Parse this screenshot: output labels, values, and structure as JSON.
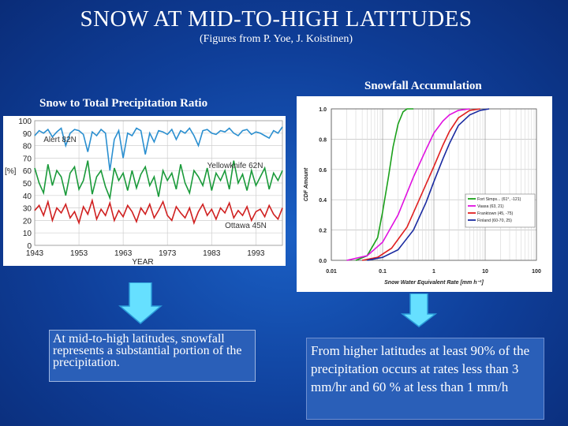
{
  "header": {
    "title": "SNOW AT MID-TO-HIGH LATITUDES",
    "subtitle": "(Figures from P. Yoe, J. Koistinen)"
  },
  "left_panel": {
    "caption": "Snow to Total Precipitation Ratio",
    "text": "At mid-to-high latitudes, snowfall represents a substantial portion of the precipitation."
  },
  "right_panel": {
    "caption": "Snowfall Accumulation",
    "text": "From higher latitudes at least 90% of the precipitation occurs at rates less than 3 mm/hr and 60 % at less than 1 mm/h"
  },
  "colors": {
    "background": "#0f3f9a",
    "arrow": "#66e0ff",
    "textbox": "#2a5fb8"
  },
  "chart_data": [
    {
      "type": "line",
      "title": "",
      "xlabel": "YEAR",
      "ylabel": "[%]",
      "xlim": [
        1943,
        1999
      ],
      "ylim": [
        0,
        100
      ],
      "xticks": [
        "1943",
        "1953",
        "1963",
        "1973",
        "1983",
        "1993"
      ],
      "yticks": [
        "0",
        "10",
        "20",
        "30",
        "40",
        "50",
        "60",
        "70",
        "80",
        "90",
        "100"
      ],
      "grid": true,
      "series": [
        {
          "name": "Alert 82N",
          "color": "#2a8fd0",
          "values": [
            88,
            92,
            90,
            93,
            87,
            91,
            94,
            80,
            90,
            93,
            92,
            89,
            75,
            91,
            88,
            93,
            90,
            60,
            85,
            92,
            70,
            90,
            88,
            94,
            92,
            73,
            90,
            83,
            92,
            91,
            89,
            93,
            85,
            92,
            90,
            94,
            88,
            80,
            92,
            93,
            90,
            89,
            92,
            91,
            94,
            90,
            88,
            92,
            93,
            89,
            91,
            90,
            88,
            86,
            92,
            90,
            95
          ]
        },
        {
          "name": "Yellowknife 62N",
          "color": "#1a9a3a",
          "values": [
            62,
            50,
            42,
            65,
            48,
            60,
            55,
            40,
            58,
            63,
            45,
            52,
            68,
            41,
            55,
            60,
            47,
            38,
            62,
            52,
            58,
            44,
            60,
            46,
            57,
            63,
            48,
            55,
            39,
            60,
            52,
            58,
            45,
            65,
            50,
            42,
            60,
            55,
            48,
            62,
            44,
            58,
            52,
            60,
            45,
            68,
            50,
            57,
            44,
            60,
            48,
            55,
            62,
            45,
            58,
            52,
            60
          ]
        },
        {
          "name": "Ottawa 45N",
          "color": "#d02020",
          "values": [
            28,
            32,
            24,
            35,
            20,
            30,
            26,
            33,
            22,
            27,
            18,
            31,
            25,
            36,
            21,
            29,
            24,
            34,
            20,
            28,
            23,
            32,
            27,
            19,
            30,
            25,
            33,
            22,
            28,
            35,
            24,
            20,
            31,
            26,
            22,
            30,
            18,
            27,
            33,
            24,
            29,
            21,
            30,
            26,
            34,
            22,
            28,
            24,
            31,
            20,
            27,
            29,
            23,
            32,
            25,
            21,
            30
          ]
        }
      ]
    },
    {
      "type": "line",
      "title": "",
      "xlabel": "Snow Water Equivalent Rate [mm h⁻¹]",
      "ylabel": "CDF Amount",
      "x_scale": "log",
      "xlim": [
        0.01,
        100
      ],
      "ylim": [
        0.0,
        1.0
      ],
      "xticks": [
        "0.01",
        "0.1",
        "1",
        "10",
        "100"
      ],
      "yticks": [
        "0.0",
        "0.2",
        "0.4",
        "0.6",
        "0.8",
        "1.0"
      ],
      "grid": true,
      "legend_position": "bottom-right",
      "series": [
        {
          "name": "Fort Simps",
          "label": "Fort Simps... (61°, -121)",
          "color": "#1aa01a",
          "x": [
            0.03,
            0.05,
            0.08,
            0.1,
            0.13,
            0.16,
            0.2,
            0.25,
            0.3,
            0.4
          ],
          "values": [
            0.0,
            0.03,
            0.15,
            0.32,
            0.55,
            0.75,
            0.9,
            0.98,
            1.0,
            1.0
          ]
        },
        {
          "name": "Vaasa",
          "label": "Vaasa (63, 21)",
          "color": "#e010e0",
          "x": [
            0.02,
            0.05,
            0.1,
            0.2,
            0.4,
            0.7,
            1,
            1.5,
            2,
            3,
            5
          ],
          "values": [
            0.0,
            0.03,
            0.12,
            0.3,
            0.55,
            0.73,
            0.84,
            0.92,
            0.96,
            0.99,
            1.0
          ]
        },
        {
          "name": "Franktown",
          "label": "Franktown (45, -75)",
          "color": "#e02020",
          "x": [
            0.04,
            0.08,
            0.15,
            0.3,
            0.6,
            1,
            1.5,
            2,
            3,
            5,
            8
          ],
          "values": [
            0.0,
            0.02,
            0.08,
            0.22,
            0.45,
            0.62,
            0.76,
            0.85,
            0.94,
            0.99,
            1.0
          ]
        },
        {
          "name": "Finland",
          "label": "Finland (60-70, 25)",
          "color": "#1a2aa0",
          "x": [
            0.05,
            0.1,
            0.2,
            0.4,
            0.7,
            1,
            1.5,
            2,
            3,
            5,
            8,
            12
          ],
          "values": [
            0.0,
            0.02,
            0.07,
            0.2,
            0.38,
            0.52,
            0.67,
            0.77,
            0.89,
            0.96,
            0.99,
            1.0
          ]
        }
      ]
    }
  ]
}
